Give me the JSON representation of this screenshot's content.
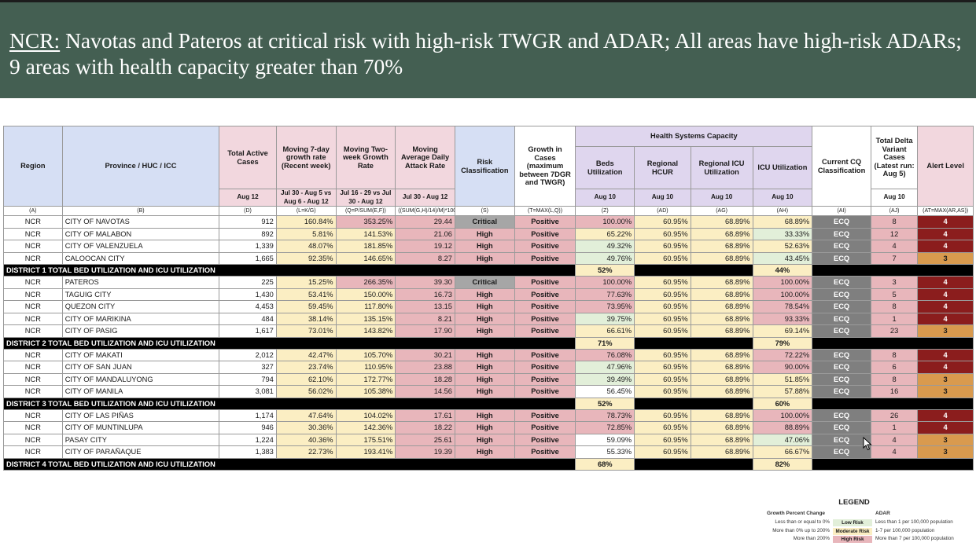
{
  "slide": {
    "title_prefix": "NCR:",
    "title_rest": " Navotas and Pateros at critical risk with high-risk TWGR and ADAR; All areas have high-risk ADARs; 9 areas with health capacity greater than 70%"
  },
  "table": {
    "headers": {
      "region": "Region",
      "province": "Province /\nHUC / ICC",
      "total_active": "Total Active Cases",
      "moving7": "Moving 7-day growth rate (Recent week)",
      "moving2w": "Moving Two-week Growth Rate",
      "adar": "Moving Average Daily Attack Rate",
      "risk": "Risk Classification",
      "growth": "Growth in Cases (maximum between 7DGR and TWGR)",
      "hsc": "Health Systems Capacity",
      "beds": "Beds Utilization",
      "hcur": "Regional HCUR",
      "icu_reg": "Regional ICU Utilization",
      "icu": "ICU Utilization",
      "cq": "Current CQ Classification",
      "delta": "Total Delta Variant Cases (Latest run: Aug 5)",
      "alert": "Alert Level"
    },
    "subheaders": {
      "total_active": "Aug 12",
      "moving7": "Jul 30 - Aug 5 vs Aug 6 - Aug 12",
      "moving2w": "Jul 16 - 29 vs Jul 30 - Aug 12",
      "adar": "Jul 30 - Aug 12",
      "beds": "Aug 10",
      "hcur": "Aug 10",
      "icu_reg": "Aug 10",
      "icu": "Aug 10",
      "delta": "Aug 10"
    },
    "letters": [
      "(A)",
      "(B)",
      "(D)",
      "(L=K/G)",
      "(Q=P/SUM(E,F))",
      "((SUM(G,H)/14)/M)*100,0",
      "(S)",
      "(T=MAX(L,Q))",
      "(Z)",
      "(AD)",
      "(AG)",
      "(AH)",
      "(AI)",
      "(AJ)",
      "(AT=MAX(AR,AS))"
    ],
    "groups": [
      {
        "rows": [
          {
            "region": "NCR",
            "province": "CITY OF NAVOTAS",
            "active": "912",
            "m7": "160.84%",
            "m2w": "353.25%",
            "adar": "29.44",
            "risk": "Critical",
            "growth": "Positive",
            "beds": "100.00%",
            "hcur": "60.95%",
            "icu_reg": "68.89%",
            "icu": "68.89%",
            "cq": "ECQ",
            "delta": "8",
            "alert": "4"
          },
          {
            "region": "NCR",
            "province": "CITY OF MALABON",
            "active": "892",
            "m7": "5.81%",
            "m2w": "141.53%",
            "adar": "21.06",
            "risk": "High",
            "growth": "Positive",
            "beds": "65.22%",
            "hcur": "60.95%",
            "icu_reg": "68.89%",
            "icu": "33.33%",
            "cq": "ECQ",
            "delta": "12",
            "alert": "4"
          },
          {
            "region": "NCR",
            "province": "CITY OF VALENZUELA",
            "active": "1,339",
            "m7": "48.07%",
            "m2w": "181.85%",
            "adar": "19.12",
            "risk": "High",
            "growth": "Positive",
            "beds": "49.32%",
            "hcur": "60.95%",
            "icu_reg": "68.89%",
            "icu": "52.63%",
            "cq": "ECQ",
            "delta": "4",
            "alert": "4"
          },
          {
            "region": "NCR",
            "province": "CALOOCAN CITY",
            "active": "1,665",
            "m7": "92.35%",
            "m2w": "146.65%",
            "adar": "8.27",
            "risk": "High",
            "growth": "Positive",
            "beds": "49.76%",
            "hcur": "60.95%",
            "icu_reg": "68.89%",
            "icu": "43.45%",
            "cq": "ECQ",
            "delta": "7",
            "alert": "3"
          }
        ],
        "district": {
          "label": "DISTRICT 1 TOTAL BED UTILIZATION AND ICU UTILIZATION",
          "beds": "52%",
          "icu": "44%"
        }
      },
      {
        "rows": [
          {
            "region": "NCR",
            "province": "PATEROS",
            "active": "225",
            "m7": "15.25%",
            "m2w": "266.35%",
            "adar": "39.30",
            "risk": "Critical",
            "growth": "Positive",
            "beds": "100.00%",
            "hcur": "60.95%",
            "icu_reg": "68.89%",
            "icu": "100.00%",
            "cq": "ECQ",
            "delta": "3",
            "alert": "4"
          },
          {
            "region": "NCR",
            "province": "TAGUIG CITY",
            "active": "1,430",
            "m7": "53.41%",
            "m2w": "150.00%",
            "adar": "16.73",
            "risk": "High",
            "growth": "Positive",
            "beds": "77.63%",
            "hcur": "60.95%",
            "icu_reg": "68.89%",
            "icu": "100.00%",
            "cq": "ECQ",
            "delta": "5",
            "alert": "4"
          },
          {
            "region": "NCR",
            "province": "QUEZON CITY",
            "active": "4,453",
            "m7": "59.45%",
            "m2w": "117.80%",
            "adar": "13.15",
            "risk": "High",
            "growth": "Positive",
            "beds": "73.95%",
            "hcur": "60.95%",
            "icu_reg": "68.89%",
            "icu": "78.54%",
            "cq": "ECQ",
            "delta": "8",
            "alert": "4"
          },
          {
            "region": "NCR",
            "province": "CITY OF MARIKINA",
            "active": "484",
            "m7": "38.14%",
            "m2w": "135.15%",
            "adar": "8.21",
            "risk": "High",
            "growth": "Positive",
            "beds": "39.75%",
            "hcur": "60.95%",
            "icu_reg": "68.89%",
            "icu": "93.33%",
            "cq": "ECQ",
            "delta": "1",
            "alert": "4"
          },
          {
            "region": "NCR",
            "province": "CITY OF PASIG",
            "active": "1,617",
            "m7": "73.01%",
            "m2w": "143.82%",
            "adar": "17.90",
            "risk": "High",
            "growth": "Positive",
            "beds": "66.61%",
            "hcur": "60.95%",
            "icu_reg": "68.89%",
            "icu": "69.14%",
            "cq": "ECQ",
            "delta": "23",
            "alert": "3"
          }
        ],
        "district": {
          "label": "DISTRICT 2 TOTAL BED UTILIZATION AND ICU UTILIZATION",
          "beds": "71%",
          "icu": "79%"
        }
      },
      {
        "rows": [
          {
            "region": "NCR",
            "province": "CITY OF MAKATI",
            "active": "2,012",
            "m7": "42.47%",
            "m2w": "105.70%",
            "adar": "30.21",
            "risk": "High",
            "growth": "Positive",
            "beds": "76.08%",
            "hcur": "60.95%",
            "icu_reg": "68.89%",
            "icu": "72.22%",
            "cq": "ECQ",
            "delta": "8",
            "alert": "4"
          },
          {
            "region": "NCR",
            "province": "CITY OF SAN JUAN",
            "active": "327",
            "m7": "23.74%",
            "m2w": "110.95%",
            "adar": "23.88",
            "risk": "High",
            "growth": "Positive",
            "beds": "47.96%",
            "hcur": "60.95%",
            "icu_reg": "68.89%",
            "icu": "90.00%",
            "cq": "ECQ",
            "delta": "6",
            "alert": "4"
          },
          {
            "region": "NCR",
            "province": "CITY OF MANDALUYONG",
            "active": "794",
            "m7": "62.10%",
            "m2w": "172.77%",
            "adar": "18.28",
            "risk": "High",
            "growth": "Positive",
            "beds": "39.49%",
            "hcur": "60.95%",
            "icu_reg": "68.89%",
            "icu": "51.85%",
            "cq": "ECQ",
            "delta": "8",
            "alert": "3"
          },
          {
            "region": "NCR",
            "province": "CITY OF MANILA",
            "active": "3,081",
            "m7": "56.02%",
            "m2w": "105.38%",
            "adar": "14.56",
            "risk": "High",
            "growth": "Positive",
            "beds": "56.45%",
            "hcur": "60.95%",
            "icu_reg": "68.89%",
            "icu": "57.88%",
            "cq": "ECQ",
            "delta": "16",
            "alert": "3"
          }
        ],
        "district": {
          "label": "DISTRICT 3 TOTAL BED UTILIZATION AND ICU UTILIZATION",
          "beds": "52%",
          "icu": "60%"
        }
      },
      {
        "rows": [
          {
            "region": "NCR",
            "province": "CITY OF LAS PIÑAS",
            "active": "1,174",
            "m7": "47.64%",
            "m2w": "104.02%",
            "adar": "17.61",
            "risk": "High",
            "growth": "Positive",
            "beds": "78.73%",
            "hcur": "60.95%",
            "icu_reg": "68.89%",
            "icu": "100.00%",
            "cq": "ECQ",
            "delta": "26",
            "alert": "4"
          },
          {
            "region": "NCR",
            "province": "CITY OF MUNTINLUPA",
            "active": "946",
            "m7": "30.36%",
            "m2w": "142.36%",
            "adar": "18.22",
            "risk": "High",
            "growth": "Positive",
            "beds": "72.85%",
            "hcur": "60.95%",
            "icu_reg": "68.89%",
            "icu": "88.89%",
            "cq": "ECQ",
            "delta": "1",
            "alert": "4"
          },
          {
            "region": "NCR",
            "province": "PASAY CITY",
            "active": "1,224",
            "m7": "40.36%",
            "m2w": "175.51%",
            "adar": "25.61",
            "risk": "High",
            "growth": "Positive",
            "beds": "59.09%",
            "hcur": "60.95%",
            "icu_reg": "68.89%",
            "icu": "47.06%",
            "cq": "ECQ",
            "delta": "4",
            "alert": "3"
          },
          {
            "region": "NCR",
            "province": "CITY OF PARAÑAQUE",
            "active": "1,383",
            "m7": "22.73%",
            "m2w": "193.41%",
            "adar": "19.39",
            "risk": "High",
            "growth": "Positive",
            "beds": "55.33%",
            "hcur": "60.95%",
            "icu_reg": "68.89%",
            "icu": "66.67%",
            "cq": "ECQ",
            "delta": "4",
            "alert": "3"
          }
        ],
        "district": {
          "label": "DISTRICT 4 TOTAL BED UTILIZATION AND ICU UTILIZATION",
          "beds": "68%",
          "icu": "82%"
        }
      }
    ]
  },
  "legend": {
    "title": "LEGEND",
    "left_header": "Growth Percent Change",
    "right_header": "ADAR",
    "rows": [
      {
        "left": "Less than or equal to 0%",
        "label": "Low Risk",
        "right": "Less than 1 per 100,000 population",
        "color": "#e2efd9"
      },
      {
        "left": "More than 0% up to 200%",
        "label": "Moderate Risk",
        "right": "1-7 per 100,000 population",
        "color": "#fbeec3"
      },
      {
        "left": "More than 200%",
        "label": "High Risk",
        "right": "More than 7 per 100,000 population",
        "color": "#e8b6bb"
      }
    ]
  },
  "colors": {
    "title_band": "#445f52",
    "alert4": "#8b1d1d",
    "alert3": "#d99a4e",
    "ecq": "#7f7f7f",
    "high_risk": "#e8b6bb",
    "moderate": "#fbeec3",
    "low_risk": "#e2efd9"
  }
}
